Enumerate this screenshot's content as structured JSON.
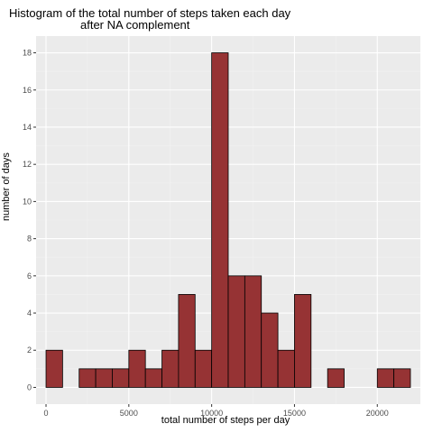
{
  "chart_data": {
    "type": "bar",
    "title": [
      "Histogram of the total number of steps taken each day",
      "after NA complement"
    ],
    "xlabel": "total number of steps per day",
    "ylabel": "number of days",
    "binwidth": 1000,
    "bins": [
      {
        "x0": 0,
        "x1": 1000,
        "count": 2
      },
      {
        "x0": 1000,
        "x1": 2000,
        "count": 0
      },
      {
        "x0": 2000,
        "x1": 3000,
        "count": 1
      },
      {
        "x0": 3000,
        "x1": 4000,
        "count": 1
      },
      {
        "x0": 4000,
        "x1": 5000,
        "count": 1
      },
      {
        "x0": 5000,
        "x1": 6000,
        "count": 2
      },
      {
        "x0": 6000,
        "x1": 7000,
        "count": 1
      },
      {
        "x0": 7000,
        "x1": 8000,
        "count": 2
      },
      {
        "x0": 8000,
        "x1": 9000,
        "count": 5
      },
      {
        "x0": 9000,
        "x1": 10000,
        "count": 2
      },
      {
        "x0": 10000,
        "x1": 11000,
        "count": 18
      },
      {
        "x0": 11000,
        "x1": 12000,
        "count": 6
      },
      {
        "x0": 12000,
        "x1": 13000,
        "count": 6
      },
      {
        "x0": 13000,
        "x1": 14000,
        "count": 4
      },
      {
        "x0": 14000,
        "x1": 15000,
        "count": 2
      },
      {
        "x0": 15000,
        "x1": 16000,
        "count": 5
      },
      {
        "x0": 16000,
        "x1": 17000,
        "count": 0
      },
      {
        "x0": 17000,
        "x1": 18000,
        "count": 1
      },
      {
        "x0": 18000,
        "x1": 19000,
        "count": 0
      },
      {
        "x0": 19000,
        "x1": 20000,
        "count": 0
      },
      {
        "x0": 20000,
        "x1": 21000,
        "count": 1
      },
      {
        "x0": 21000,
        "x1": 22000,
        "count": 1
      }
    ],
    "xlim": [
      -600,
      22600
    ],
    "ylim": [
      -0.9,
      18.9
    ],
    "xticks": [
      0,
      5000,
      10000,
      15000,
      20000
    ],
    "xtick_labels": [
      "0",
      "5000",
      "10000",
      "15000",
      "20000"
    ],
    "yticks": [
      0,
      2,
      4,
      6,
      8,
      10,
      12,
      14,
      16,
      18
    ],
    "ytick_labels": [
      "0",
      "2",
      "4",
      "6",
      "8",
      "10",
      "12",
      "14",
      "16",
      "18"
    ],
    "grid": true,
    "colors": {
      "bar_fill": "#963334",
      "bar_stroke": "#000000",
      "panel_background": "#ebebeb",
      "grid_major": "#ffffff",
      "grid_minor": "#f2f2f2",
      "tick_label": "#4d4d4d"
    }
  }
}
